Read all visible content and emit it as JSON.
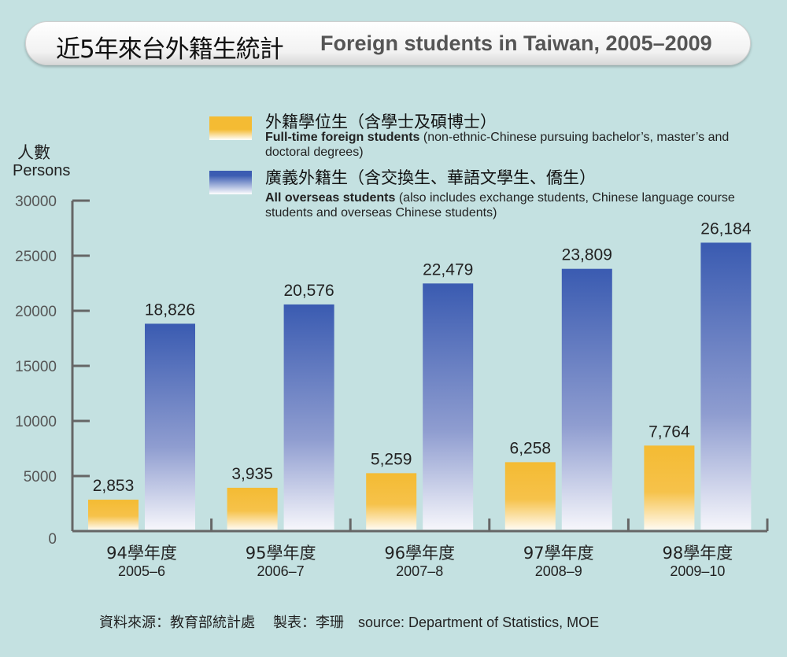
{
  "title": {
    "zh": "近5年來台外籍生統計",
    "en": "Foreign students in Taiwan, 2005–2009"
  },
  "legend": [
    {
      "zh": "外籍學位生（含學士及碩博士）",
      "en_bold": "Full-time foreign students",
      "en_rest": " (non-ethnic-Chinese pursuing bachelor’s, master’s and doctoral degrees)",
      "color": "#f4bb33"
    },
    {
      "zh": "廣義外籍生（含交換生、華語文學生、僑生）",
      "en_bold": "All overseas students",
      "en_rest": " (also includes exchange students, Chinese language course students and overseas Chinese students)",
      "color": "#3b5cb2"
    }
  ],
  "source": "資料來源：教育部統計處　 製表：李珊　source: Department of Statistics, MOE",
  "chart_data": {
    "type": "bar",
    "ylabel_zh": "人數",
    "ylabel": "Persons",
    "ylim": [
      0,
      30000
    ],
    "yticks": [
      "0",
      "5000",
      "10000",
      "15000",
      "20000",
      "25000",
      "30000"
    ],
    "categories": [
      {
        "zh": "94學年度",
        "en": "2005–6"
      },
      {
        "zh": "95學年度",
        "en": "2006–7"
      },
      {
        "zh": "96學年度",
        "en": "2007–8"
      },
      {
        "zh": "97學年度",
        "en": "2008–9"
      },
      {
        "zh": "98學年度",
        "en": "2009–10"
      }
    ],
    "series": [
      {
        "name": "Full-time foreign students",
        "values": [
          2853,
          3935,
          5259,
          6258,
          7764
        ],
        "labels": [
          "2,853",
          "3,935",
          "5,259",
          "6,258",
          "7,764"
        ]
      },
      {
        "name": "All overseas students",
        "values": [
          18826,
          20576,
          22479,
          23809,
          26184
        ],
        "labels": [
          "18,826",
          "20,576",
          "22,479",
          "23,809",
          "26,184"
        ]
      }
    ],
    "grid": false,
    "legend_position": "top"
  }
}
